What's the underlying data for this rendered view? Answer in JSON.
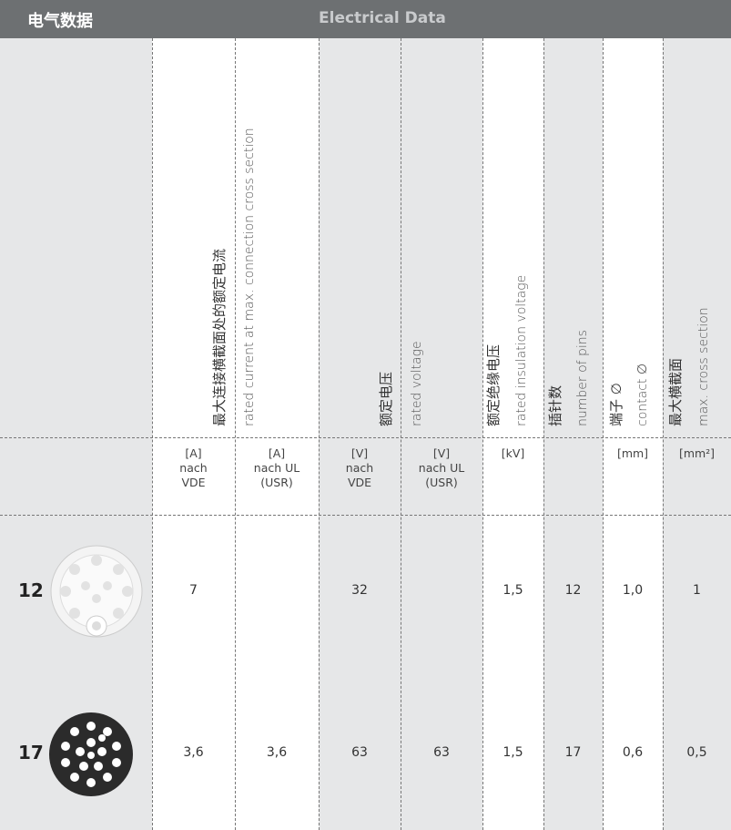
{
  "header": {
    "title_cn": "电气数据",
    "title_en": "Electrical Data"
  },
  "columns": [
    {
      "cn": "最大连接横截面处的额定电流",
      "en": "rated current at max. connection cross section"
    },
    {
      "cn": "额定电压",
      "en": "rated voltage"
    },
    {
      "cn": "额定绝缘电压",
      "en": "rated insulation voltage"
    },
    {
      "cn": "插针数",
      "en": "number of pins"
    },
    {
      "cn": "端子 ∅",
      "en": "contact ∅"
    },
    {
      "cn": "最大横截面",
      "en": "max. cross section"
    }
  ],
  "units": [
    [
      "[A]",
      "nach",
      "VDE"
    ],
    [
      "[A]",
      "nach UL",
      "(USR)"
    ],
    [
      "[V]",
      "nach",
      "VDE"
    ],
    [
      "[V]",
      "nach UL",
      "(USR)"
    ],
    [
      "[kV]"
    ],
    [],
    [
      "[mm]"
    ],
    [
      "[mm²]"
    ]
  ],
  "rows": [
    {
      "label": "12",
      "cells": [
        "7",
        null,
        "32",
        null,
        "1,5",
        "12",
        "1,0",
        "1"
      ]
    },
    {
      "label": "17",
      "cells": [
        "3,6",
        "3,6",
        "63",
        "63",
        "1,5",
        "17",
        "0,6",
        "0,5"
      ]
    }
  ]
}
